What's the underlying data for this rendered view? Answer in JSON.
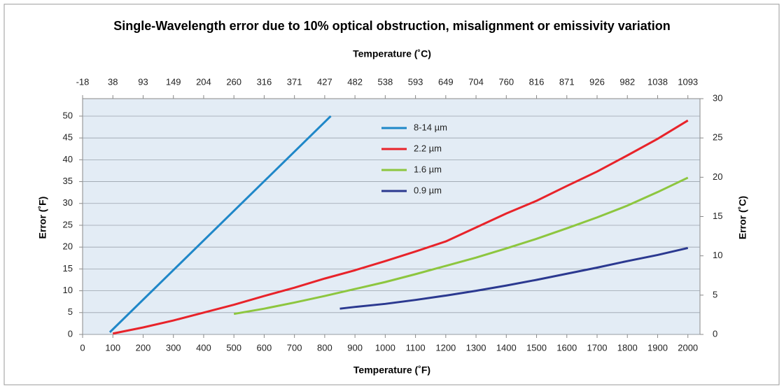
{
  "chart_data": {
    "type": "line",
    "title": "Single-Wavelength error due to 10% optical obstruction, misalignment or emissivity variation",
    "x_label": "Temperature (˚F)",
    "x2_label": "Temperature (˚C)",
    "y_label": "Error (˚F)",
    "y2_label": "Error (˚C)",
    "xlim": [
      0,
      2040
    ],
    "xticks": [
      0,
      100,
      200,
      300,
      400,
      500,
      600,
      700,
      800,
      900,
      1000,
      1100,
      1200,
      1300,
      1400,
      1500,
      1600,
      1700,
      1800,
      1900,
      2000
    ],
    "x2lim": [
      -17.78,
      1115.56
    ],
    "x2ticks": [
      {
        "value": -17.78,
        "label": "-18"
      },
      {
        "value": 37.78,
        "label": "38"
      },
      {
        "value": 93.33,
        "label": "93"
      },
      {
        "value": 148.89,
        "label": "149"
      },
      {
        "value": 204.44,
        "label": "204"
      },
      {
        "value": 260,
        "label": "260"
      },
      {
        "value": 315.56,
        "label": "316"
      },
      {
        "value": 371.11,
        "label": "371"
      },
      {
        "value": 426.67,
        "label": "427"
      },
      {
        "value": 482.22,
        "label": "482"
      },
      {
        "value": 537.78,
        "label": "538"
      },
      {
        "value": 593.33,
        "label": "593"
      },
      {
        "value": 648.89,
        "label": "649"
      },
      {
        "value": 704.44,
        "label": "704"
      },
      {
        "value": 760,
        "label": "760"
      },
      {
        "value": 815.56,
        "label": "816"
      },
      {
        "value": 871.11,
        "label": "871"
      },
      {
        "value": 926.67,
        "label": "926"
      },
      {
        "value": 982.22,
        "label": "982"
      },
      {
        "value": 1037.78,
        "label": "1038"
      },
      {
        "value": 1093.33,
        "label": "1093"
      }
    ],
    "ylim": [
      0,
      54
    ],
    "yticks": [
      0,
      5,
      10,
      15,
      20,
      25,
      30,
      35,
      40,
      45,
      50
    ],
    "y2lim": [
      0,
      30
    ],
    "y2ticks": [
      0,
      5,
      10,
      15,
      20,
      25,
      30
    ],
    "grid": true,
    "legend": "top-center",
    "series": [
      {
        "name": "8-14 µm",
        "color": "#1f87c8",
        "x": [
          90,
          820
        ],
        "values": [
          0.5,
          50
        ]
      },
      {
        "name": "2.2 µm",
        "color": "#e8232a",
        "x": [
          100,
          200,
          300,
          400,
          500,
          600,
          700,
          800,
          900,
          1000,
          1100,
          1200,
          1300,
          1400,
          1500,
          1600,
          1700,
          1800,
          1900,
          2000
        ],
        "values": [
          0.2,
          1.6,
          3.2,
          5,
          6.8,
          8.8,
          10.7,
          12.8,
          14.7,
          16.8,
          19,
          21.3,
          24.5,
          27.7,
          30.6,
          34,
          37.3,
          41,
          44.8,
          49
        ]
      },
      {
        "name": "1.6 µm",
        "color": "#8dc63f",
        "x": [
          500,
          600,
          700,
          800,
          900,
          1000,
          1100,
          1200,
          1300,
          1400,
          1500,
          1600,
          1700,
          1800,
          1900,
          2000
        ],
        "values": [
          4.7,
          5.9,
          7.3,
          8.8,
          10.4,
          12,
          13.8,
          15.7,
          17.6,
          19.7,
          21.9,
          24.3,
          26.8,
          29.5,
          32.6,
          35.9
        ]
      },
      {
        "name": "0.9 µm",
        "color": "#2b3990",
        "x": [
          850,
          900,
          1000,
          1100,
          1200,
          1300,
          1400,
          1500,
          1600,
          1700,
          1800,
          1900,
          2000
        ],
        "values": [
          5.9,
          6.3,
          7,
          7.9,
          8.9,
          10,
          11.2,
          12.5,
          13.9,
          15.3,
          16.8,
          18.2,
          19.8
        ]
      }
    ]
  }
}
